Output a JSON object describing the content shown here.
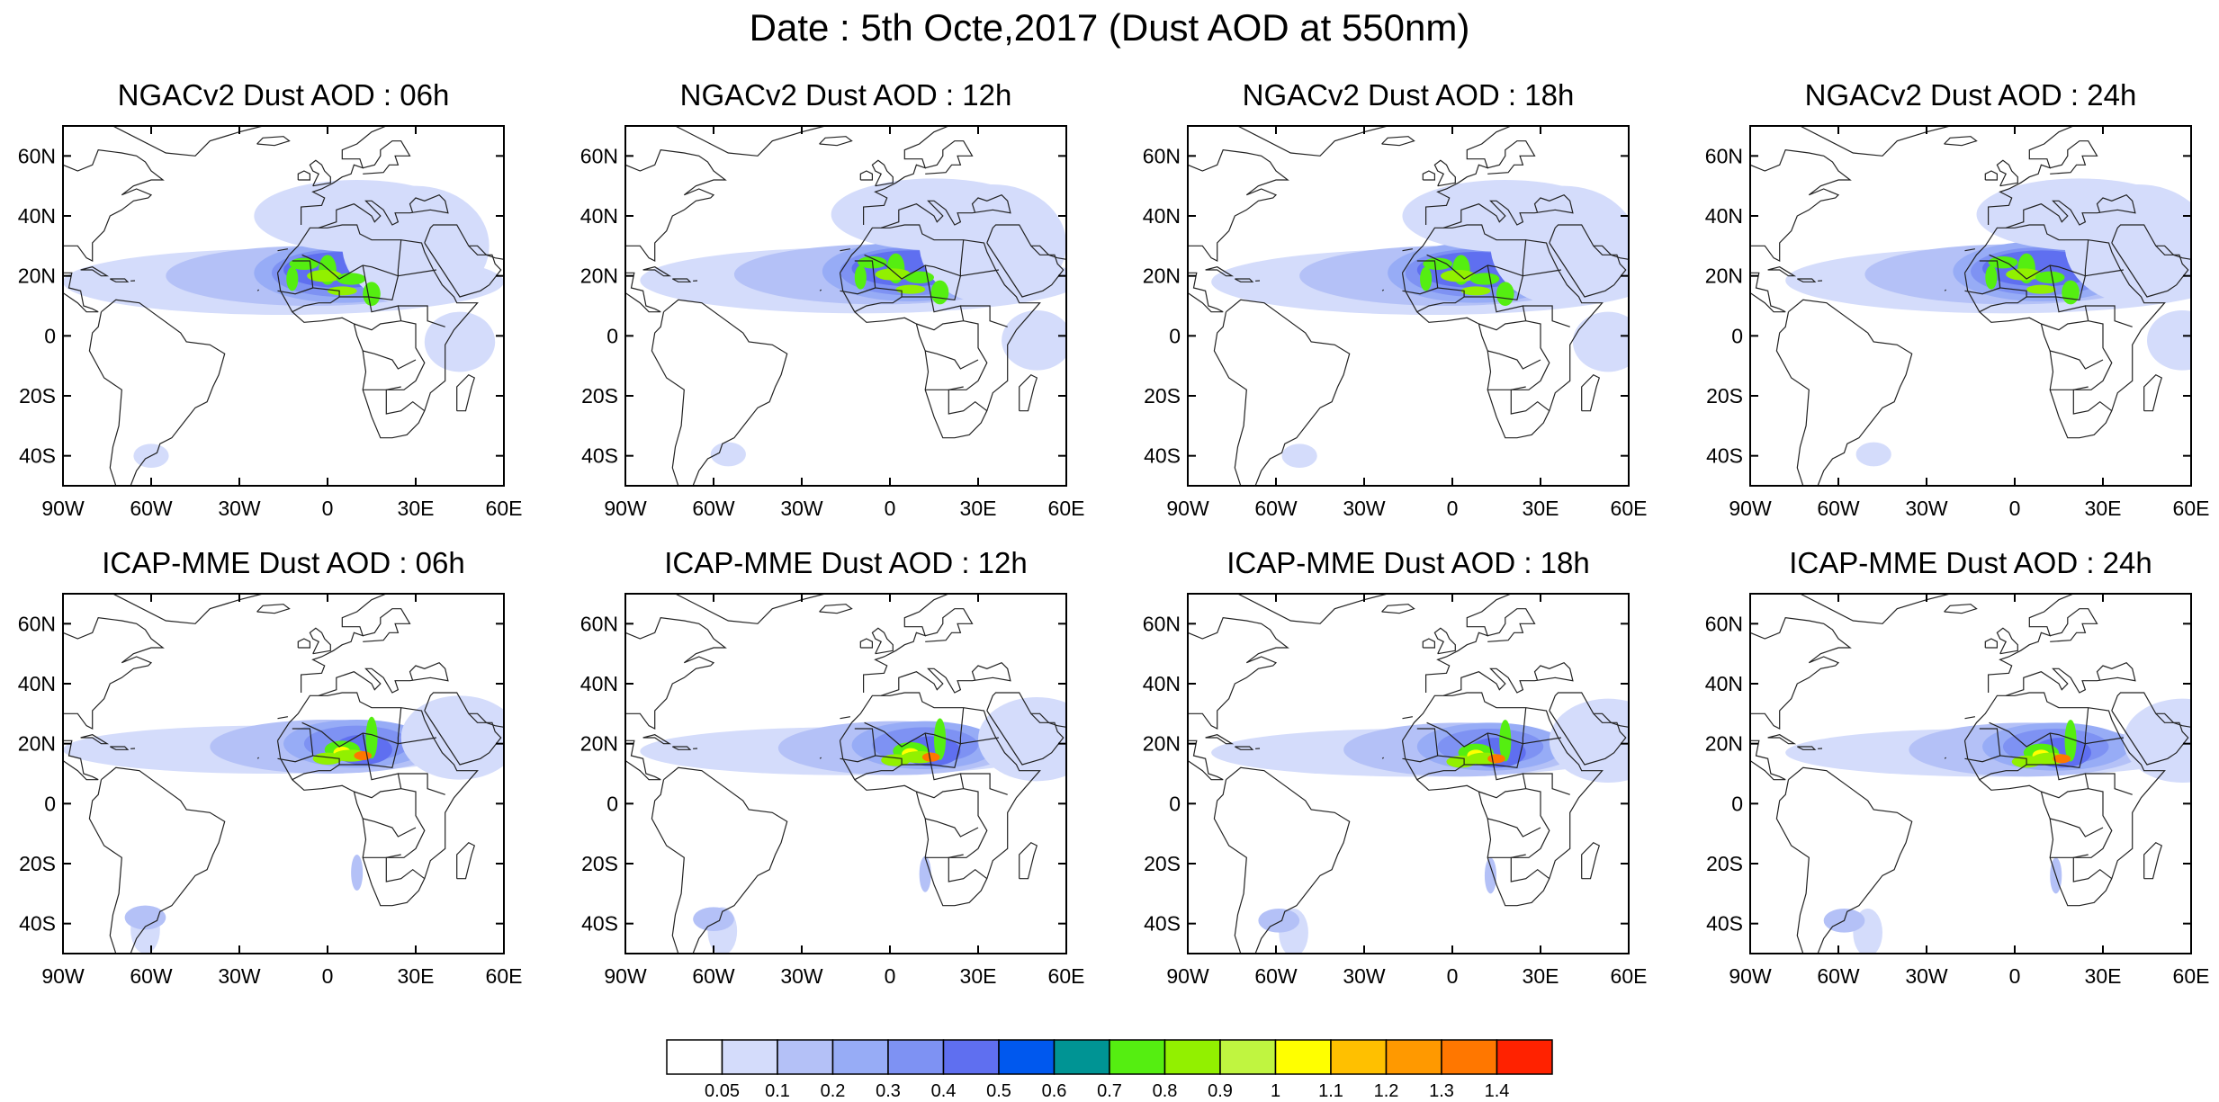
{
  "page_title": "Date : 5th Octe,2017 (Dust AOD at 550nm)",
  "panels": [
    {
      "title": "NGACv2 Dust AOD : 06h"
    },
    {
      "title": "NGACv2 Dust AOD : 12h"
    },
    {
      "title": "NGACv2 Dust AOD : 18h"
    },
    {
      "title": "NGACv2 Dust AOD : 24h"
    },
    {
      "title": "ICAP-MME Dust AOD : 06h"
    },
    {
      "title": "ICAP-MME Dust AOD : 12h"
    },
    {
      "title": "ICAP-MME Dust AOD : 18h"
    },
    {
      "title": "ICAP-MME Dust AOD : 24h"
    }
  ],
  "axes": {
    "lon_ticks": [
      "90W",
      "60W",
      "30W",
      "0",
      "30E",
      "60E"
    ],
    "lon_values": [
      -90,
      -60,
      -30,
      0,
      30,
      60
    ],
    "lat_ticks": [
      "60N",
      "40N",
      "20N",
      "0",
      "20S",
      "40S"
    ],
    "lat_values": [
      60,
      40,
      20,
      0,
      -20,
      -40
    ],
    "lon_range": [
      -90,
      60
    ],
    "lat_range": [
      -50,
      70
    ]
  },
  "colorbar": {
    "labels": [
      "0.05",
      "0.1",
      "0.2",
      "0.3",
      "0.4",
      "0.5",
      "0.6",
      "0.7",
      "0.8",
      "0.9",
      "1",
      "1.1",
      "1.2",
      "1.3",
      "1.4"
    ],
    "colors": [
      "#ffffff",
      "#d4dcfb",
      "#b4c1f7",
      "#97acf6",
      "#7e92f3",
      "#5f6ff0",
      "#0058ee",
      "#009494",
      "#55ee11",
      "#92f000",
      "#c0f540",
      "#ffff00",
      "#ffc000",
      "#ff9900",
      "#ff7700",
      "#ff2200"
    ]
  }
}
